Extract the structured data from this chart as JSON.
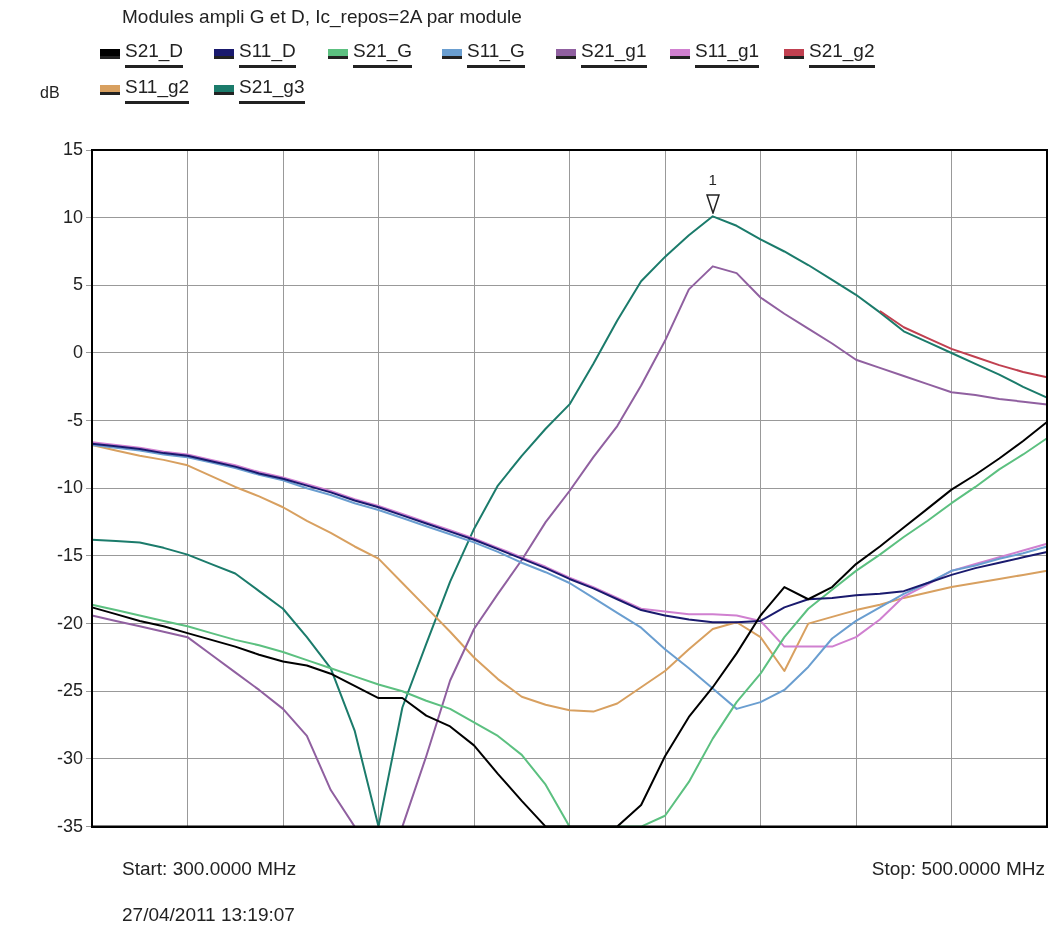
{
  "chart_data": {
    "type": "line",
    "title": "Modules ampli G et D, Ic_repos=2A par module",
    "ylabel": "dB",
    "categories": [
      null,
      null,
      null,
      null,
      null,
      null,
      null,
      null,
      null,
      null,
      null,
      null,
      null,
      null,
      null,
      null,
      null,
      null,
      null,
      null,
      null,
      null,
      null,
      null,
      null,
      null,
      null,
      null,
      null,
      null,
      null,
      null,
      null,
      null,
      null,
      null,
      null,
      null,
      null,
      null,
      null
    ],
    "ylim": [
      -35,
      15
    ],
    "yticks": [
      -35,
      -30,
      -25,
      -20,
      -15,
      -10,
      -5,
      0,
      5,
      10,
      15
    ],
    "grid": true,
    "legend": "top",
    "marker": "none",
    "line_style": "solid",
    "series": [
      {
        "name": "S21_D",
        "color": "#000000",
        "values": [
          -18.8,
          -19.3,
          -19.8,
          -20.2,
          -20.7,
          -21.2,
          -21.7,
          -22.3,
          -22.8,
          -23.1,
          -23.7,
          -24.6,
          -25.5,
          -25.5,
          -26.8,
          -27.6,
          -29,
          -31.1,
          -33.1,
          -35,
          -35,
          -35,
          -35,
          -33.4,
          -29.8,
          -26.9,
          -24.7,
          -22.2,
          -19.4,
          -17.3,
          -18.2,
          -17.3,
          -15.6,
          -14.3,
          -12.9,
          -11.5,
          -10.1,
          -9,
          -7.8,
          -6.5,
          -5.1
        ]
      },
      {
        "name": "S11_D",
        "color": "#1a1a6e",
        "values": [
          -6.7,
          -6.9,
          -7.1,
          -7.4,
          -7.6,
          -8,
          -8.4,
          -8.9,
          -9.3,
          -9.8,
          -10.3,
          -10.9,
          -11.4,
          -12,
          -12.6,
          -13.2,
          -13.8,
          -14.5,
          -15.2,
          -15.9,
          -16.7,
          -17.4,
          -18.2,
          -19,
          -19.4,
          -19.7,
          -19.9,
          -19.9,
          -19.8,
          -18.8,
          -18.2,
          -18.1,
          -17.9,
          -17.8,
          -17.6,
          -17,
          -16.4,
          -15.9,
          -15.5,
          -15.1,
          -14.7
        ]
      },
      {
        "name": "S21_G",
        "color": "#5cc080",
        "values": [
          -18.6,
          -19,
          -19.4,
          -19.8,
          -20.2,
          -20.7,
          -21.2,
          -21.6,
          -22.1,
          -22.7,
          -23.3,
          -23.9,
          -24.5,
          -25,
          -25.7,
          -26.3,
          -27.3,
          -28.3,
          -29.7,
          -31.9,
          -35,
          null,
          -35,
          -35,
          -34.2,
          -31.7,
          -28.5,
          -25.8,
          -23.7,
          -21,
          -18.9,
          -17.5,
          -16.1,
          -14.9,
          -13.6,
          -12.4,
          -11.1,
          -9.9,
          -8.6,
          -7.5,
          -6.3
        ]
      },
      {
        "name": "S11_G",
        "color": "#6a9ed0",
        "values": [
          -6.8,
          -7,
          -7.2,
          -7.5,
          -7.7,
          -8.1,
          -8.5,
          -9,
          -9.4,
          -10,
          -10.5,
          -11.1,
          -11.6,
          -12.2,
          -12.8,
          -13.4,
          -14,
          -14.7,
          -15.5,
          -16.2,
          -17,
          -18.1,
          -19.2,
          -20.3,
          -21.9,
          -23.3,
          -24.8,
          -26.3,
          -25.8,
          -24.9,
          -23.2,
          -21.1,
          -19.8,
          -18.8,
          -17.8,
          -17,
          -16.1,
          -15.7,
          -15.2,
          -14.8,
          -14.3
        ]
      },
      {
        "name": "S21_g1",
        "color": "#9060a0",
        "values": [
          -19.4,
          -19.8,
          -20.2,
          -20.6,
          -21,
          -22.3,
          -23.6,
          -24.9,
          -26.3,
          -28.3,
          -32.3,
          -35,
          null,
          -35,
          -29.8,
          -24.2,
          -20.4,
          -17.8,
          -15.3,
          -12.5,
          -10.2,
          -7.7,
          -5.4,
          -2.4,
          0.9,
          4.7,
          6.4,
          5.9,
          4.1,
          2.9,
          1.8,
          0.7,
          -0.5,
          -1.1,
          -1.7,
          -2.3,
          -2.9,
          -3.1,
          -3.4,
          -3.6,
          -3.8
        ]
      },
      {
        "name": "S11_g1",
        "color": "#d080d0",
        "values": [
          -6.6,
          -6.8,
          -7,
          -7.3,
          -7.5,
          -7.9,
          -8.3,
          -8.8,
          -9.2,
          -9.7,
          -10.2,
          -10.8,
          -11.3,
          -11.9,
          -12.5,
          -13.1,
          -13.7,
          -14.4,
          -15.1,
          -15.8,
          -16.6,
          -17.3,
          -18.1,
          -18.9,
          -19.1,
          -19.3,
          -19.3,
          -19.4,
          -19.8,
          -21.7,
          -21.7,
          -21.7,
          -21,
          -19.7,
          -18,
          -17.1,
          -16.1,
          -15.6,
          -15.1,
          -14.6,
          -14.1
        ]
      },
      {
        "name": "S21_g2",
        "color": "#c04050",
        "values": [
          null,
          null,
          null,
          null,
          null,
          null,
          null,
          null,
          null,
          null,
          null,
          null,
          null,
          null,
          null,
          null,
          null,
          null,
          null,
          null,
          null,
          null,
          null,
          null,
          null,
          null,
          null,
          null,
          null,
          null,
          null,
          null,
          null,
          3.1,
          1.9,
          1.1,
          0.3,
          -0.3,
          -0.9,
          -1.4,
          -1.8
        ]
      },
      {
        "name": "S11_g2",
        "color": "#d8a060",
        "values": [
          -6.8,
          -7.2,
          -7.6,
          -7.9,
          -8.3,
          -9.1,
          -9.9,
          -10.6,
          -11.4,
          -12.4,
          -13.3,
          -14.3,
          -15.2,
          -17,
          -18.8,
          -20.6,
          -22.5,
          -24.1,
          -25.4,
          -26,
          -26.4,
          -26.5,
          -25.9,
          -24.7,
          -23.5,
          -21.9,
          -20.4,
          -19.9,
          -21,
          -23.5,
          -20,
          -19.5,
          -19,
          -18.6,
          -18.1,
          -17.7,
          -17.3,
          -17,
          -16.7,
          -16.4,
          -16.1
        ]
      },
      {
        "name": "S21_g3",
        "color": "#1b7b6b",
        "values": [
          -13.8,
          -13.9,
          -14,
          -14.4,
          -14.9,
          -15.6,
          -16.3,
          -17.6,
          -18.9,
          -21,
          -23.3,
          -27.9,
          -35,
          -26.2,
          -21.5,
          -16.9,
          -13,
          -9.8,
          -7.6,
          -5.6,
          -3.8,
          -0.8,
          2.4,
          5.3,
          7.1,
          8.7,
          10.1,
          9.4,
          8.4,
          7.5,
          6.5,
          5.4,
          4.3,
          3,
          1.6,
          0.8,
          0,
          -0.8,
          -1.6,
          -2.5,
          -3.3
        ]
      }
    ],
    "annotations": [
      "Start: 300.0000 MHz",
      "Stop: 500.0000 MHz",
      "27/04/2011 13:19:07",
      {
        "text": "1",
        "y": 10.1
      }
    ]
  }
}
